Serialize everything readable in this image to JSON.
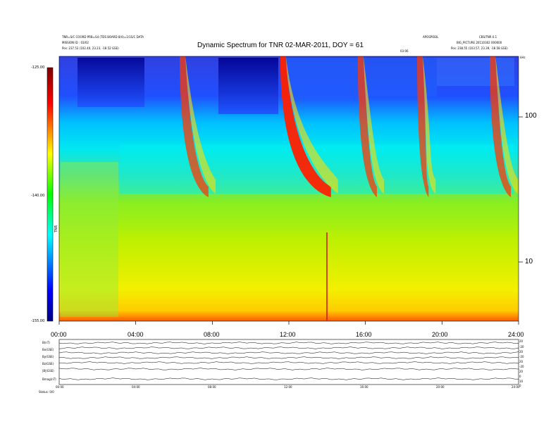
{
  "header": {
    "left_line1": "TNR=S/C COORD PRB=S4 (TDS BOARD 8/4)=1/1S/C DATA",
    "left_line2": "MISSION ID : 03/02",
    "left_line3": "Pos: 237.53 (102.40, 23.23, -18.52 GSE)",
    "right_line1": "APOSPOEIL",
    "right_line1b": "CBS/TNR 0.1",
    "right_line2": "BIG_PICTURE 20110302 000000",
    "right_line3": "Pos: 238.55 (103.57, 23.39, -18.58 GSE)",
    "event_marker": "03:06",
    "top_right_corner": "kHz"
  },
  "chart_data": {
    "type": "heatmap",
    "title": "Dynamic Spectrum for TNR 02-MAR-2011, DOY = 61",
    "x_tick_labels": [
      "00:00",
      "04:00",
      "08:00",
      "12:00",
      "16:00",
      "20:00",
      "24:00"
    ],
    "x_range_hours": [
      0,
      24
    ],
    "y_right_tick_labels": [
      "100",
      "10"
    ],
    "y_right_scale": "log",
    "colorbar_tick_labels": [
      "-125.00",
      "-140.00",
      "-155.00"
    ],
    "colorbar_range": [
      -155,
      -125
    ],
    "colorbar_label": "TNR",
    "colormap": [
      "#000080",
      "#0000ff",
      "#00ffff",
      "#00ff00",
      "#ffff00",
      "#ff0000",
      "#800000"
    ],
    "features": [
      {
        "name": "type III burst",
        "start_hour": 11.55,
        "end_hour": 14.2
      },
      {
        "name": "type III burst",
        "start_hour": 6.3,
        "end_hour": 7.8
      },
      {
        "name": "type III burst",
        "start_hour": 15.6,
        "end_hour": 16.6
      },
      {
        "name": "type III burst",
        "start_hour": 18.7,
        "end_hour": 19.3
      },
      {
        "name": "type III burst",
        "start_hour": 22.5,
        "end_hour": 23.6
      }
    ]
  },
  "lower_panel": {
    "row_labels": [
      "B(nT)",
      "Bx(GSE)",
      "By(GSE)",
      "Bz(GSE)",
      "|B|(GSE)",
      "Bmag(nT)"
    ],
    "right_labels": [
      "20",
      "-20",
      "20",
      "-20",
      "20",
      "-20",
      "20",
      "0",
      "10",
      "0"
    ],
    "x_tick_labels": [
      "00:00",
      "04:00",
      "08:00",
      "12:00",
      "16:00",
      "20:00",
      "24:00"
    ],
    "footer_label": "Status: 0/0"
  }
}
